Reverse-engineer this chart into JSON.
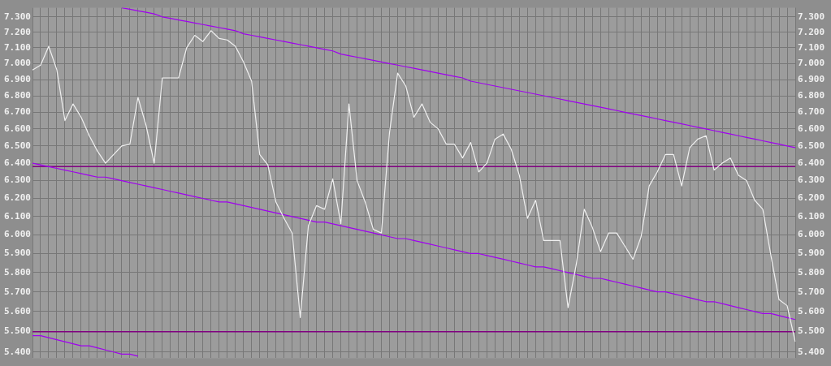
{
  "chart_data": {
    "type": "line",
    "log": true,
    "grid": true,
    "legend": false,
    "tick_labels": "y",
    "marker": "none",
    "line_style": "solid",
    "categories": [
      null,
      null,
      null,
      null,
      null,
      null,
      null,
      null,
      null,
      null,
      null,
      null,
      null,
      null,
      null,
      null,
      null,
      null,
      null,
      null,
      null,
      null,
      null,
      null,
      null,
      null,
      null,
      null,
      null,
      null,
      null,
      null,
      null,
      null,
      null,
      null,
      null,
      null,
      null,
      null,
      null,
      null,
      null,
      null,
      null,
      null,
      null,
      null,
      null,
      null,
      null,
      null,
      null,
      null,
      null,
      null,
      null,
      null,
      null,
      null,
      null,
      null,
      null,
      null,
      null,
      null,
      null,
      null,
      null,
      null,
      null,
      null,
      null,
      null,
      null,
      null,
      null,
      null,
      null,
      null,
      null,
      null,
      null,
      null,
      null,
      null,
      null,
      null,
      null,
      null,
      null,
      null,
      null,
      null,
      null
    ],
    "ylim": [
      5.37,
      7.36
    ],
    "yticks": [
      {
        "value": 5.4,
        "label": "5.400"
      },
      {
        "value": 5.5,
        "label": "5.500"
      },
      {
        "value": 5.6,
        "label": "5.600"
      },
      {
        "value": 5.7,
        "label": "5.700"
      },
      {
        "value": 5.8,
        "label": "5.800"
      },
      {
        "value": 5.9,
        "label": "5.900"
      },
      {
        "value": 6.0,
        "label": "6.000"
      },
      {
        "value": 6.1,
        "label": "6.100"
      },
      {
        "value": 6.2,
        "label": "6.200"
      },
      {
        "value": 6.3,
        "label": "6.300"
      },
      {
        "value": 6.4,
        "label": "6.400"
      },
      {
        "value": 6.5,
        "label": "6.500"
      },
      {
        "value": 6.6,
        "label": "6.600"
      },
      {
        "value": 6.7,
        "label": "6.700"
      },
      {
        "value": 6.8,
        "label": "6.800"
      },
      {
        "value": 6.9,
        "label": "6.900"
      },
      {
        "value": 7.0,
        "label": "7.000"
      },
      {
        "value": 7.1,
        "label": "7.100"
      },
      {
        "value": 7.2,
        "label": "7.200"
      },
      {
        "value": 7.3,
        "label": "7.300"
      }
    ],
    "ref_lines": [
      {
        "axis": "y",
        "value": 6.38,
        "color": "#800080"
      },
      {
        "axis": "y",
        "value": 5.5,
        "color": "#800080"
      }
    ],
    "series": [
      {
        "type": "line",
        "color": "#f0f0f0",
        "values": [
          6.96,
          6.99,
          7.11,
          6.96,
          6.65,
          6.75,
          6.67,
          6.56,
          6.47,
          6.4,
          6.45,
          6.5,
          6.51,
          6.79,
          6.62,
          6.4,
          6.91,
          6.91,
          6.91,
          7.1,
          7.18,
          7.14,
          7.21,
          7.16,
          7.15,
          7.11,
          7.01,
          6.89,
          6.45,
          6.39,
          6.18,
          6.09,
          6.01,
          5.57,
          6.05,
          6.16,
          6.14,
          6.31,
          6.06,
          6.75,
          6.3,
          6.18,
          6.03,
          6.01,
          6.58,
          6.94,
          6.86,
          6.67,
          6.75,
          6.64,
          6.6,
          6.51,
          6.51,
          6.43,
          6.52,
          6.35,
          6.4,
          6.54,
          6.57,
          6.48,
          6.33,
          6.09,
          6.19,
          5.97,
          5.97,
          5.97,
          5.62,
          5.84,
          6.14,
          6.04,
          5.91,
          6.01,
          6.01,
          5.94,
          5.87,
          5.99,
          6.27,
          6.35,
          6.45,
          6.45,
          6.27,
          6.49,
          6.54,
          6.56,
          6.36,
          6.4,
          6.43,
          6.33,
          6.3,
          6.19,
          6.14,
          5.89,
          5.66,
          5.63,
          5.45
        ]
      },
      {
        "type": "line",
        "color": "#a000f0",
        "values": [
          null,
          null,
          null,
          null,
          null,
          null,
          null,
          null,
          null,
          null,
          null,
          7.36,
          7.35,
          7.34,
          7.33,
          7.32,
          7.3,
          7.29,
          7.28,
          7.27,
          7.26,
          7.25,
          7.24,
          7.23,
          7.22,
          7.21,
          7.19,
          7.18,
          7.17,
          7.16,
          7.15,
          7.14,
          7.13,
          7.12,
          7.11,
          7.1,
          7.09,
          7.08,
          7.06,
          7.05,
          7.04,
          7.03,
          7.02,
          7.01,
          7.0,
          6.99,
          6.98,
          6.97,
          6.96,
          6.95,
          6.94,
          6.93,
          6.92,
          6.91,
          6.89,
          6.88,
          6.87,
          6.86,
          6.85,
          6.84,
          6.83,
          6.82,
          6.81,
          6.8,
          6.79,
          6.78,
          6.77,
          6.76,
          6.75,
          6.74,
          6.73,
          6.72,
          6.71,
          6.7,
          6.69,
          6.68,
          6.67,
          6.66,
          6.65,
          6.64,
          6.63,
          6.62,
          6.61,
          6.6,
          6.59,
          6.58,
          6.57,
          6.56,
          6.55,
          6.54,
          6.53,
          6.52,
          6.51,
          6.5,
          6.49
        ]
      },
      {
        "type": "line",
        "color": "#a000f0",
        "values": [
          6.4,
          6.39,
          6.38,
          6.37,
          6.36,
          6.35,
          6.34,
          6.33,
          6.32,
          6.32,
          6.31,
          6.3,
          6.29,
          6.28,
          6.27,
          6.26,
          6.25,
          6.24,
          6.23,
          6.22,
          6.21,
          6.2,
          6.19,
          6.18,
          6.18,
          6.17,
          6.16,
          6.15,
          6.14,
          6.13,
          6.12,
          6.11,
          6.1,
          6.09,
          6.08,
          6.07,
          6.07,
          6.06,
          6.05,
          6.04,
          6.03,
          6.02,
          6.01,
          6.0,
          5.99,
          5.98,
          5.98,
          5.97,
          5.96,
          5.95,
          5.94,
          5.93,
          5.92,
          5.91,
          5.9,
          5.9,
          5.89,
          5.88,
          5.87,
          5.86,
          5.85,
          5.84,
          5.83,
          5.83,
          5.82,
          5.81,
          5.8,
          5.79,
          5.78,
          5.77,
          5.77,
          5.76,
          5.75,
          5.74,
          5.73,
          5.72,
          5.71,
          5.7,
          5.7,
          5.69,
          5.68,
          5.67,
          5.66,
          5.65,
          5.65,
          5.64,
          5.63,
          5.62,
          5.61,
          5.6,
          5.59,
          5.59,
          5.58,
          5.57,
          5.56
        ]
      },
      {
        "type": "line",
        "color": "#a000f0",
        "values": [
          5.48,
          5.48,
          5.47,
          5.46,
          5.45,
          5.44,
          5.43,
          5.43,
          5.42,
          5.41,
          5.4,
          5.39,
          5.39,
          5.38,
          null,
          null,
          null,
          null,
          null,
          null,
          null,
          null,
          null,
          null,
          null,
          null,
          null,
          null,
          null,
          null,
          null,
          null,
          null,
          null,
          null,
          null,
          null,
          null,
          null,
          null,
          null,
          null,
          null,
          null,
          null,
          null,
          null,
          null,
          null,
          null,
          null,
          null,
          null,
          null,
          null,
          null,
          null,
          null,
          null,
          null,
          null,
          null,
          null,
          null,
          null,
          null,
          null,
          null,
          null,
          null,
          null,
          null,
          null,
          null,
          null,
          null,
          null,
          null,
          null,
          null,
          null,
          null,
          null,
          null,
          null,
          null,
          null,
          null,
          null,
          null,
          null,
          null,
          null,
          null,
          null
        ]
      }
    ]
  }
}
